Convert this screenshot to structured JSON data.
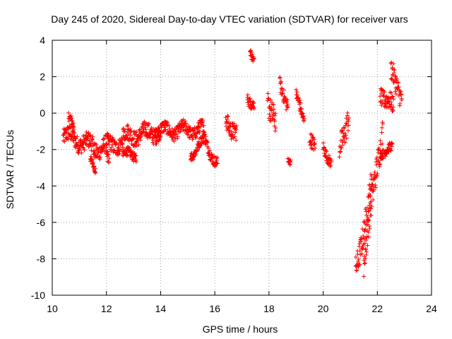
{
  "chart_data": {
    "type": "scatter",
    "title": "Day 245 of 2020, Sidereal Day-to-day VTEC variation (SDTVAR) for receiver vars",
    "xlabel": "GPS time / hours",
    "ylabel": "SDTVAR / TECUs",
    "xlim": [
      10,
      24
    ],
    "ylim": [
      -10,
      4
    ],
    "xticks": [
      10,
      12,
      14,
      16,
      18,
      20,
      22,
      24
    ],
    "yticks": [
      -10,
      -8,
      -6,
      -4,
      -2,
      0,
      2,
      4
    ],
    "grid": true,
    "marker": "+",
    "color": "#ff0000",
    "series": [
      {
        "name": "SDTVAR",
        "segments": [
          {
            "t0": 10.4,
            "t1": 11.5,
            "y0": -1.2,
            "y1": -1.8,
            "spread": 0.45
          },
          {
            "t0": 10.6,
            "t1": 10.8,
            "y0": -0.4,
            "y1": -0.8,
            "spread": 0.25
          },
          {
            "t0": 11.4,
            "t1": 11.6,
            "y0": -2.7,
            "y1": -3.0,
            "spread": 0.2
          },
          {
            "t0": 11.5,
            "t1": 12.6,
            "y0": -2.0,
            "y1": -1.6,
            "spread": 0.45
          },
          {
            "t0": 12.0,
            "t1": 12.1,
            "y0": -2.5,
            "y1": -2.8,
            "spread": 0.3
          },
          {
            "t0": 12.6,
            "t1": 13.1,
            "y0": -2.4,
            "y1": -2.2,
            "spread": 0.25
          },
          {
            "t0": 12.6,
            "t1": 14.0,
            "y0": -1.3,
            "y1": -1.0,
            "spread": 0.45
          },
          {
            "t0": 13.8,
            "t1": 15.6,
            "y0": -1.0,
            "y1": -0.9,
            "spread": 0.35
          },
          {
            "t0": 15.1,
            "t1": 15.6,
            "y0": -2.2,
            "y1": -1.6,
            "spread": 0.25
          },
          {
            "t0": 15.6,
            "t1": 16.1,
            "y0": -1.4,
            "y1": -2.8,
            "spread": 0.3
          },
          {
            "t0": 16.4,
            "t1": 16.8,
            "y0": -0.3,
            "y1": -1.1,
            "spread": 0.5
          },
          {
            "t0": 17.2,
            "t1": 17.45,
            "y0": 1.0,
            "y1": 0.5,
            "spread": 0.3
          },
          {
            "t0": 17.3,
            "t1": 17.45,
            "y0": 3.7,
            "y1": 2.8,
            "spread": 0.2
          },
          {
            "t0": 17.95,
            "t1": 18.25,
            "y0": 0.8,
            "y1": -0.6,
            "spread": 0.7
          },
          {
            "t0": 18.4,
            "t1": 18.7,
            "y0": 1.4,
            "y1": 0.6,
            "spread": 0.4
          },
          {
            "t0": 18.7,
            "t1": 18.8,
            "y0": -2.3,
            "y1": -2.6,
            "spread": 0.15
          },
          {
            "t0": 19.0,
            "t1": 19.3,
            "y0": 0.8,
            "y1": -0.3,
            "spread": 0.35
          },
          {
            "t0": 19.5,
            "t1": 19.7,
            "y0": -1.3,
            "y1": -2.1,
            "spread": 0.4
          },
          {
            "t0": 20.0,
            "t1": 20.3,
            "y0": -1.6,
            "y1": -2.9,
            "spread": 0.3
          },
          {
            "t0": 20.6,
            "t1": 20.95,
            "y0": -1.8,
            "y1": -0.2,
            "spread": 0.7
          },
          {
            "t0": 21.2,
            "t1": 21.8,
            "y0": -8.8,
            "y1": -3.9,
            "spread": 0.7
          },
          {
            "t0": 21.5,
            "t1": 22.2,
            "y0": -8.0,
            "y1": -0.8,
            "spread": 0.8
          },
          {
            "t0": 22.1,
            "t1": 22.55,
            "y0": -2.0,
            "y1": -2.1,
            "spread": 0.25
          },
          {
            "t0": 22.1,
            "t1": 22.6,
            "y0": 1.2,
            "y1": 0.2,
            "spread": 0.5
          },
          {
            "t0": 22.5,
            "t1": 22.9,
            "y0": 2.2,
            "y1": 1.0,
            "spread": 0.6
          }
        ]
      }
    ]
  }
}
